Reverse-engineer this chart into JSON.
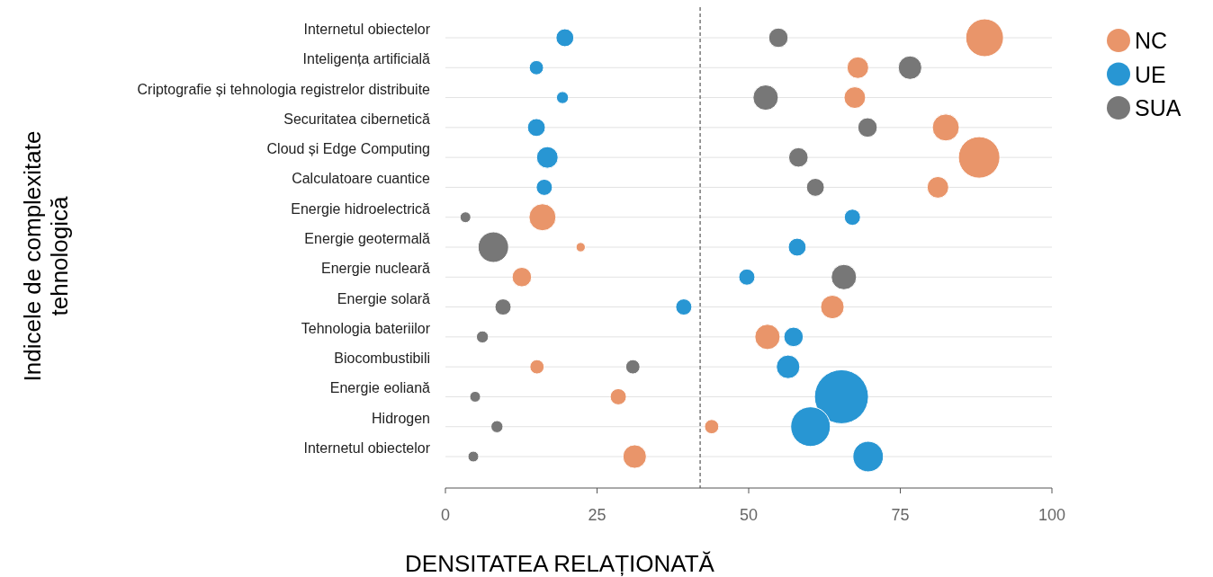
{
  "chart_data": {
    "type": "bubble",
    "orientation": "horizontal",
    "xlabel": "DENSITATEA RELAȚIONATĂ",
    "ylabel": "Indicele de complexitate tehnologică",
    "categories": [
      "Internetul obiectelor",
      "Inteligența artificială",
      "Criptografie și tehnologia registrelor distribuite",
      "Securitatea cibernetică",
      "Cloud și Edge Computing",
      "Calculatoare cuantice",
      "Energie hidroelectrică",
      "Energie geotermală",
      "Energie nucleară",
      "Energie solară",
      "Tehnologia bateriilor",
      "Biocombustibili",
      "Energie eoliană",
      "Hidrogen",
      "Internetul obiectelor"
    ],
    "series": [
      {
        "name": "NC",
        "color": "#e9956a",
        "values": [
          88.9,
          68.0,
          67.5,
          82.5,
          88.0,
          81.2,
          16.0,
          22.3,
          12.6,
          63.8,
          53.1,
          15.1,
          28.5,
          43.9,
          31.2
        ],
        "sizes": [
          0.49,
          0.16,
          0.16,
          0.25,
          0.59,
          0.16,
          0.25,
          0.03,
          0.13,
          0.19,
          0.22,
          0.07,
          0.09,
          0.07,
          0.19
        ]
      },
      {
        "name": "UE",
        "color": "#2896d3",
        "values": [
          19.7,
          15.0,
          19.3,
          15.0,
          16.8,
          16.3,
          67.1,
          58.0,
          49.7,
          39.3,
          57.4,
          56.5,
          65.3,
          60.2,
          69.7
        ],
        "sizes": [
          0.11,
          0.07,
          0.05,
          0.11,
          0.16,
          0.09,
          0.09,
          0.11,
          0.09,
          0.09,
          0.13,
          0.19,
          1,
          0.54,
          0.32
        ]
      },
      {
        "name": "SUA",
        "color": "#777777",
        "values": [
          54.9,
          76.6,
          52.8,
          69.6,
          58.2,
          61.0,
          3.3,
          7.9,
          65.7,
          9.5,
          6.1,
          30.9,
          4.9,
          8.5,
          4.6
        ],
        "sizes": [
          0.13,
          0.19,
          0.22,
          0.13,
          0.13,
          0.11,
          0.04,
          0.32,
          0.22,
          0.09,
          0.05,
          0.07,
          0.04,
          0.05,
          0.04
        ]
      }
    ],
    "xlim": [
      0,
      100
    ],
    "xticks": [
      0,
      25,
      50,
      75,
      100
    ],
    "grid": "y",
    "legend": "top right",
    "ref_lines": [
      {
        "axis": "x",
        "value": 42,
        "color": "#777777",
        "line_style": "dashed"
      }
    ]
  }
}
